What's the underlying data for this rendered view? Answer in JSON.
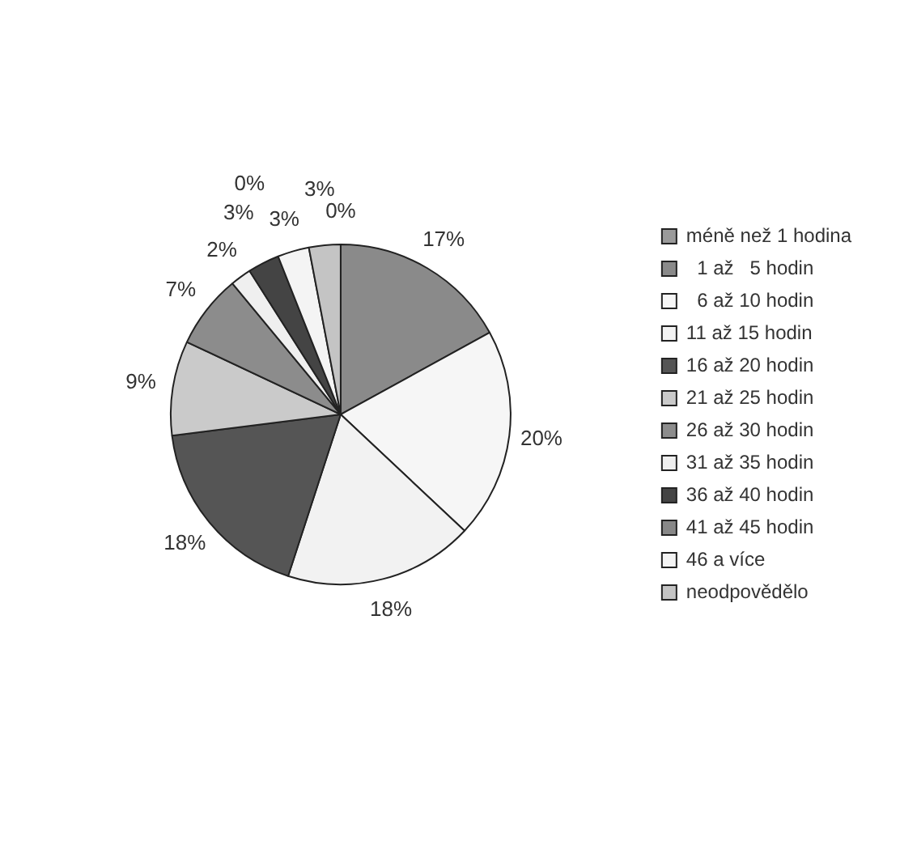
{
  "chart_data": {
    "type": "pie",
    "categories": [
      "méně než 1 hodina",
      "  1 až   5 hodin",
      "  6 až 10 hodin",
      "11 až 15 hodin",
      "16 až 20 hodin",
      "21 až 25 hodin",
      "26 až 30 hodin",
      "31 až 35 hodin",
      "36 až 40 hodin",
      "41 až 45 hodin",
      "46 a více",
      "neodpovědělo"
    ],
    "values": [
      0,
      17,
      20,
      18,
      18,
      9,
      7,
      2,
      3,
      0,
      3,
      3
    ],
    "colors": [
      "#9a9a9a",
      "#8a8a8a",
      "#f6f6f6",
      "#f2f2f2",
      "#555555",
      "#cacaca",
      "#8c8c8c",
      "#efefef",
      "#444444",
      "#888888",
      "#f4f4f4",
      "#c4c4c4"
    ],
    "value_labels": [
      "0%",
      "17%",
      "20%",
      "18%",
      "18%",
      "9%",
      "7%",
      "2%",
      "3%",
      "0%",
      "3%",
      "3%"
    ],
    "legend": "right"
  }
}
